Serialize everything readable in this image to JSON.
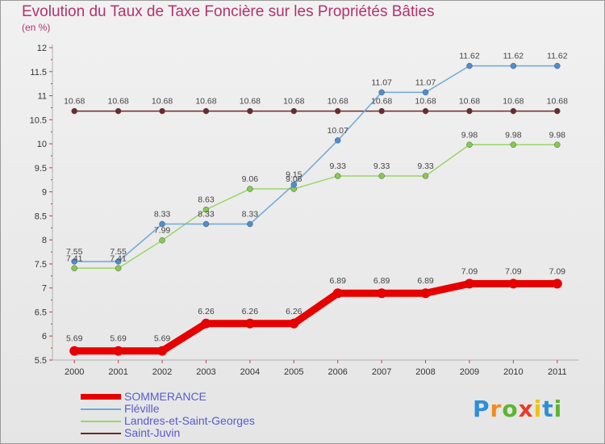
{
  "title": "Evolution du Taux de Taxe Foncière sur les Propriétés Bâties",
  "unit_label": "(en %)",
  "logo": "Proxiti",
  "chart_data": {
    "type": "line",
    "title": "Evolution du Taux de Taxe Foncière sur les Propriétés Bâties",
    "ylabel": "(en %)",
    "xlabel": "",
    "ylim": [
      5.5,
      12
    ],
    "yticks": [
      "5.5",
      "6",
      "6.5",
      "7",
      "7.5",
      "8",
      "8.5",
      "9",
      "9.5",
      "10",
      "10.5",
      "11",
      "11.5",
      "12"
    ],
    "categories": [
      "2000",
      "2001",
      "2002",
      "2003",
      "2004",
      "2005",
      "2006",
      "2007",
      "2008",
      "2009",
      "2010",
      "2011"
    ],
    "grid": false,
    "legend_position": "bottom-left",
    "series": [
      {
        "name": "SOMMERANCE",
        "color": "#e60000",
        "values": [
          5.69,
          5.69,
          5.69,
          6.26,
          6.26,
          6.26,
          6.89,
          6.89,
          6.89,
          7.09,
          7.09,
          7.09
        ],
        "labels": [
          "5.69",
          "5.69",
          "5.69",
          "6.26",
          "6.26",
          "6.26",
          "6.89",
          "6.89",
          "6.89",
          "7.09",
          "7.09",
          "7.09"
        ]
      },
      {
        "name": "Fléville",
        "color": "#6fa8dc",
        "values": [
          7.55,
          7.55,
          8.33,
          8.33,
          8.33,
          9.15,
          10.07,
          11.07,
          11.07,
          11.62,
          11.62,
          11.62
        ],
        "labels": [
          "7.55",
          "7.55",
          "8.33",
          "8.33",
          "8.33",
          "9.15",
          "10.07",
          "11.07",
          "11.07",
          "11.62",
          "11.62",
          "11.62"
        ]
      },
      {
        "name": "Landres-et-Saint-Georges",
        "color": "#9bd46a",
        "values": [
          7.41,
          7.41,
          7.99,
          8.63,
          9.06,
          9.06,
          9.33,
          9.33,
          9.33,
          9.98,
          9.98,
          9.98
        ],
        "labels": [
          "7.41",
          "7.41",
          "7.99",
          "8.63",
          "9.06",
          "9.06",
          "9.33",
          "9.33",
          "9.33",
          "9.98",
          "9.98",
          "9.98"
        ]
      },
      {
        "name": "Saint-Juvin",
        "color": "#6b2a2a",
        "values": [
          10.68,
          10.68,
          10.68,
          10.68,
          10.68,
          10.68,
          10.68,
          10.68,
          10.68,
          10.68,
          10.68,
          10.68
        ],
        "labels": [
          "10.68",
          "10.68",
          "10.68",
          "10.68",
          "10.68",
          "10.68",
          "10.68",
          "10.68",
          "10.68",
          "10.68",
          "10.68",
          "10.68"
        ]
      }
    ]
  }
}
